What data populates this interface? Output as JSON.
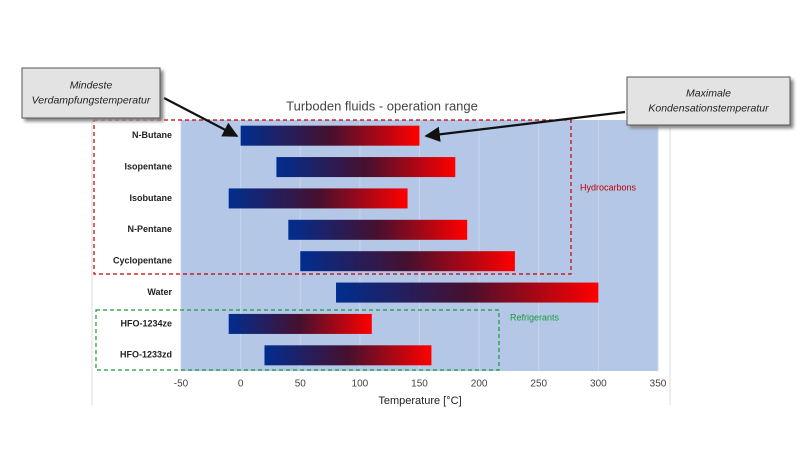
{
  "chart_data": {
    "type": "range-bar",
    "title": "Turboden fluids - operation range",
    "x_label": "Temperature [°C]",
    "categories": [
      "N-Butane",
      "Isopentane",
      "Isobutane",
      "N-Pentane",
      "Cyclopentane",
      "Water",
      "HFO-1234ze",
      "HFO-1233zd"
    ],
    "low": [
      0,
      30,
      -10,
      40,
      50,
      80,
      -10,
      20
    ],
    "high": [
      150,
      180,
      140,
      190,
      230,
      300,
      110,
      160
    ],
    "xlim": [
      -50,
      350
    ],
    "xticks": [
      -50,
      0,
      50,
      100,
      150,
      200,
      250,
      300,
      350
    ],
    "grid": true,
    "colors": {
      "start": "#002e8f",
      "mid": "#46102e",
      "end": "#ff0000"
    },
    "background": "#b4c7e7",
    "groups": [
      {
        "label": "Hydrocarbons",
        "color": "#c00000"
      },
      {
        "label": "Refrigerants",
        "color": "#1a9a3a"
      }
    ],
    "annotations": [
      {
        "lines": [
          "Mindeste",
          "Verdampfungstemperatur"
        ]
      },
      {
        "lines": [
          "Maximale",
          "Kondensationstemperatur"
        ]
      }
    ]
  }
}
